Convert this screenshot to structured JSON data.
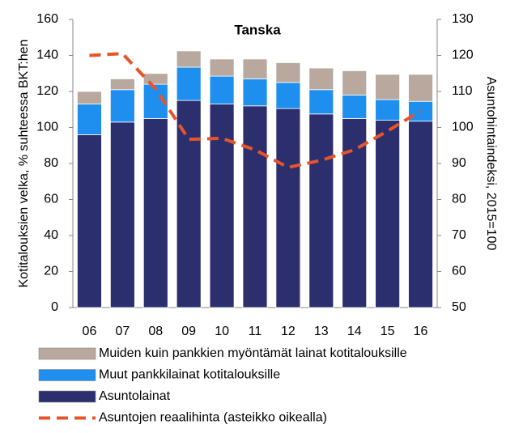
{
  "chart_data": {
    "type": "bar",
    "stacked": true,
    "title": "Tanska",
    "ylabel": "Kotitalouksien velka, % suhteessa BKT:hen",
    "y2label": "Asuntohintaindeksi, 2015=100",
    "categories": [
      "06",
      "07",
      "08",
      "09",
      "10",
      "11",
      "12",
      "13",
      "14",
      "15",
      "16"
    ],
    "series": [
      {
        "name": "Asuntolainat",
        "color": "#2b2f6e",
        "values": [
          96,
          103,
          105,
          115,
          113,
          112,
          110.5,
          107.5,
          105,
          104,
          103.5
        ]
      },
      {
        "name": "Muut pankkilainat kotitalouksille",
        "color": "#1f8fef",
        "values": [
          17,
          18,
          19,
          18.5,
          15.5,
          15,
          14.5,
          13.5,
          13,
          11.5,
          11
        ]
      },
      {
        "name": "Muiden kuin pankkien myöntämät lainat kotitalouksille",
        "color": "#b9a89e",
        "values": [
          7,
          6,
          6,
          9,
          9.5,
          11,
          11,
          12,
          13.5,
          14,
          15
        ]
      },
      {
        "name": "Asuntojen reaalihinta (asteikko oikealla)",
        "color": "#e8542a",
        "type": "line",
        "axis": "y2",
        "values": [
          120,
          120.5,
          110.7,
          96.7,
          97,
          93.8,
          88.9,
          90.9,
          93.8,
          99,
          104.6
        ]
      }
    ],
    "ylim": [
      0,
      160
    ],
    "yticks": [
      0,
      20,
      40,
      60,
      80,
      100,
      120,
      140,
      160
    ],
    "y2lim": [
      50,
      130
    ],
    "y2ticks": [
      50,
      60,
      70,
      80,
      90,
      100,
      110,
      120,
      130
    ]
  }
}
